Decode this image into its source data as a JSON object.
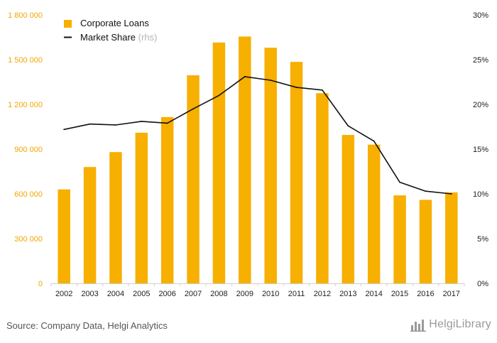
{
  "colors": {
    "bar": "#F7AF00",
    "line": "#111111",
    "left_tick": "#F2A600",
    "right_tick": "#1b1b1b",
    "baseline": "#cfcfcf",
    "source_text": "#555555",
    "brand_text": "#9a9a9a"
  },
  "chart_data": {
    "type": "bar",
    "categories": [
      "2002",
      "2003",
      "2004",
      "2005",
      "2006",
      "2007",
      "2008",
      "2009",
      "2010",
      "2011",
      "2012",
      "2013",
      "2014",
      "2015",
      "2016",
      "2017"
    ],
    "series": [
      {
        "name": "Corporate Loans",
        "type": "bar",
        "axis": "left",
        "values": [
          630000,
          780000,
          880000,
          1010000,
          1115000,
          1395000,
          1615000,
          1655000,
          1580000,
          1485000,
          1275000,
          995000,
          930000,
          590000,
          560000,
          610000
        ]
      },
      {
        "name": "Market Share",
        "name_suffix": "(rhs)",
        "type": "line",
        "axis": "right",
        "values": [
          0.172,
          0.178,
          0.177,
          0.181,
          0.179,
          0.195,
          0.21,
          0.231,
          0.227,
          0.219,
          0.216,
          0.176,
          0.159,
          0.113,
          0.103,
          0.1
        ]
      }
    ],
    "y_left": {
      "min": 0,
      "max": 1800000,
      "ticks": [
        0,
        300000,
        600000,
        900000,
        1200000,
        1500000,
        1800000
      ],
      "tick_labels": [
        "0",
        "300 000",
        "600 000",
        "900 000",
        "1 200 000",
        "1 500 000",
        "1 800 000"
      ]
    },
    "y_right": {
      "min": 0,
      "max": 0.3,
      "ticks": [
        0,
        0.05,
        0.1,
        0.15,
        0.2,
        0.25,
        0.3
      ],
      "tick_labels": [
        "0%",
        "5%",
        "10%",
        "15%",
        "20%",
        "25%",
        "30%"
      ]
    },
    "grid": false,
    "legend": {
      "placement": "top-left",
      "items": [
        {
          "label": "Corporate Loans",
          "suffix": ""
        },
        {
          "label": "Market Share",
          "suffix": "(rhs)"
        }
      ]
    }
  },
  "footer": {
    "source": "Source: Company Data, Helgi Analytics",
    "brand": "HelgiLibrary",
    "brand_icon": "bar-chart-icon"
  }
}
